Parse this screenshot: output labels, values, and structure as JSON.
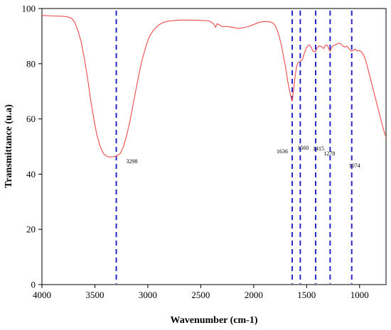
{
  "chart_data": {
    "type": "line",
    "title": "",
    "xlabel": "Wavenumber (cm-1)",
    "ylabel": "Transmittance (u.a)",
    "xlim": [
      4000,
      750
    ],
    "x_reversed": true,
    "ylim": [
      0,
      100
    ],
    "xticks": [
      4000,
      3500,
      3000,
      2500,
      2000,
      1500,
      1000
    ],
    "yticks": [
      0,
      20,
      40,
      60,
      80,
      100
    ],
    "grid": false,
    "line_color": "#ec4a4a",
    "marker_color": "#2626c8",
    "series": [
      {
        "x": [
          4000,
          3900,
          3800,
          3760,
          3720,
          3690,
          3660,
          3630,
          3600,
          3570,
          3540,
          3510,
          3480,
          3450,
          3420,
          3390,
          3360,
          3330,
          3298,
          3260,
          3230,
          3200,
          3170,
          3140,
          3110,
          3080,
          3050,
          3020,
          2990,
          2950,
          2900,
          2850,
          2800,
          2700,
          2600,
          2500,
          2420,
          2380,
          2360,
          2345,
          2320,
          2300,
          2250,
          2200,
          2150,
          2100,
          2050,
          2000,
          1950,
          1900,
          1850,
          1820,
          1800,
          1780,
          1760,
          1740,
          1720,
          1700,
          1680,
          1660,
          1645,
          1636,
          1625,
          1610,
          1595,
          1580,
          1560,
          1540,
          1520,
          1500,
          1480,
          1460,
          1440,
          1430,
          1415,
          1400,
          1380,
          1360,
          1340,
          1320,
          1300,
          1290,
          1278,
          1265,
          1250,
          1230,
          1210,
          1200,
          1180,
          1160,
          1140,
          1120,
          1100,
          1085,
          1074,
          1060,
          1040,
          1020,
          1000,
          980,
          960,
          940,
          920,
          900,
          880,
          860,
          840,
          820,
          800,
          780,
          760,
          750
        ],
        "y": [
          97.5,
          97.3,
          97.2,
          97,
          96.5,
          95,
          92,
          88,
          82,
          75,
          67,
          60,
          54,
          50,
          47.5,
          46.5,
          46.2,
          46.3,
          46.5,
          47.5,
          50,
          54,
          59,
          65,
          71,
          77,
          82,
          86,
          89.5,
          92,
          94,
          95,
          95.5,
          95.8,
          95.8,
          95.7,
          95.5,
          94.5,
          93.2,
          94.5,
          94,
          93.5,
          93.5,
          93.2,
          92.8,
          93,
          93.5,
          94.2,
          95,
          95.3,
          95.2,
          94.8,
          94,
          92.5,
          90,
          87,
          83,
          79,
          74,
          70,
          67.5,
          66.5,
          70,
          75,
          79,
          80.5,
          81,
          81.5,
          84,
          86,
          86.8,
          86.3,
          84.5,
          84.3,
          84.5,
          85.8,
          86.5,
          86.2,
          85.5,
          86.8,
          86.5,
          85.3,
          84.5,
          85.8,
          86.5,
          86.8,
          87.2,
          87.4,
          87.3,
          86.5,
          86,
          86.4,
          85.5,
          84.8,
          84.5,
          84.8,
          85.3,
          84.6,
          84.8,
          84.2,
          83,
          81,
          78,
          75,
          72,
          69,
          66,
          63,
          60,
          57,
          54.5,
          53.5
        ]
      }
    ],
    "peaks": [
      {
        "x": 3298,
        "label": "3298"
      },
      {
        "x": 1636,
        "label": "1636"
      },
      {
        "x": 1560,
        "label": "1560"
      },
      {
        "x": 1415,
        "label": "1415"
      },
      {
        "x": 1278,
        "label": "1278"
      },
      {
        "x": 1074,
        "label": "1074"
      }
    ]
  }
}
